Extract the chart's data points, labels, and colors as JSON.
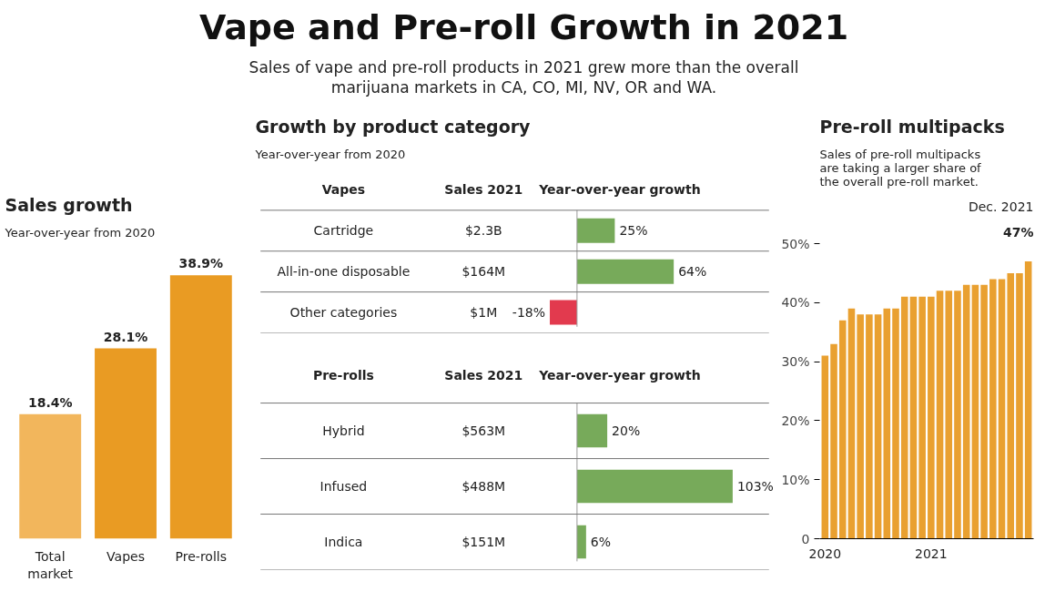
{
  "chart_data": [
    {
      "type": "other",
      "title": "Vape and Pre-roll Growth in 2021",
      "subtitle": "Sales of vape and pre-roll products in 2021 grew more than the overall marijuana markets in CA, CO, MI, NV, OR and WA."
    },
    {
      "type": "bar",
      "title": "Sales growth",
      "subtitle": "Year-over-year from 2020",
      "categories": [
        "Total market",
        "Vapes",
        "Pre-rolls"
      ],
      "values": [
        18.4,
        28.1,
        38.9
      ],
      "colors": [
        "#f2b65c",
        "#e99b23",
        "#e99b23"
      ],
      "value_labels": [
        "18.4%",
        "28.1%",
        "38.9%"
      ]
    },
    {
      "type": "bar",
      "orientation": "horizontal",
      "title": "Growth by product category",
      "subtitle": "Year-over-year from 2020",
      "ylabel": "Vapes",
      "xlabel": "Year-over-year growth",
      "categories": [
        "Cartridge",
        "All-in-one disposable",
        "Other categories"
      ],
      "values": [
        25,
        64,
        -18
      ],
      "colors": [
        "#77aa5a",
        "#77aa5a",
        "#e23a4e"
      ],
      "value_labels": [
        "25%",
        "64%",
        "-18%"
      ],
      "annotations": [
        "Sales 2021",
        "$2.3B",
        "$164M",
        "$1M"
      ]
    },
    {
      "type": "bar",
      "orientation": "horizontal",
      "ylabel": "Pre-rolls",
      "xlabel": "Year-over-year growth",
      "categories": [
        "Hybrid",
        "Infused",
        "Indica"
      ],
      "values": [
        20,
        103,
        6
      ],
      "colors": [
        "#77aa5a",
        "#77aa5a",
        "#77aa5a"
      ],
      "value_labels": [
        "20%",
        "103%",
        "6%"
      ],
      "annotations": [
        "Sales 2021",
        "$563M",
        "$488M",
        "$151M"
      ]
    },
    {
      "type": "bar",
      "title": "Pre-roll multipacks",
      "subtitle": "Sales of pre-roll multipacks are taking a larger share of the overall pre-roll market.",
      "categories": [
        "2020",
        null,
        null,
        null,
        null,
        null,
        null,
        null,
        null,
        null,
        null,
        null,
        "2021",
        null,
        null,
        null,
        null,
        null,
        null,
        null,
        null,
        null,
        null,
        null
      ],
      "values": [
        31,
        33,
        37,
        39,
        38,
        38,
        38,
        39,
        39,
        41,
        41,
        41,
        41,
        42,
        42,
        42,
        43,
        43,
        43,
        44,
        44,
        45,
        45,
        47
      ],
      "color": "#e9a030",
      "ylim": [
        0,
        50
      ],
      "yticks": [
        0,
        {
          "value": 10,
          "label": "10%"
        },
        {
          "value": 20,
          "label": "20%"
        },
        {
          "value": 30,
          "label": "30%"
        },
        {
          "value": 40,
          "label": "40%"
        },
        {
          "value": 50,
          "label": "50%"
        }
      ],
      "grid": false,
      "annotations": [
        "Dec. 2021",
        "47%"
      ]
    }
  ]
}
